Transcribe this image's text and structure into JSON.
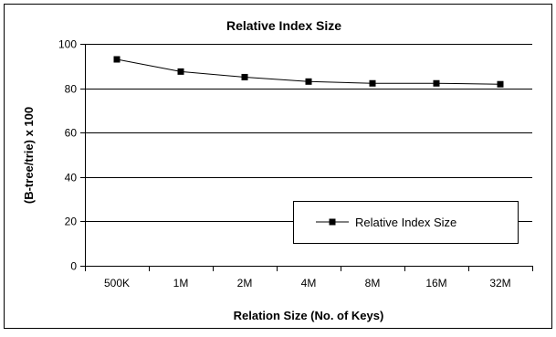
{
  "chart_data": {
    "type": "line",
    "title": "Relative Index Size",
    "xlabel": "Relation Size (No. of Keys)",
    "ylabel": "(B-tree/trie) x 100",
    "categories": [
      "500K",
      "1M",
      "2M",
      "4M",
      "8M",
      "16M",
      "32M"
    ],
    "ylim": [
      0,
      100
    ],
    "yticks": [
      0,
      20,
      40,
      60,
      80,
      100
    ],
    "grid": "horizontal",
    "legend_position": "bottom-right",
    "series": [
      {
        "name": "Relative Index Size",
        "marker": "square",
        "color": "#000000",
        "values": [
          93,
          87.5,
          85,
          83,
          82.2,
          82.2,
          81.8
        ]
      }
    ]
  }
}
